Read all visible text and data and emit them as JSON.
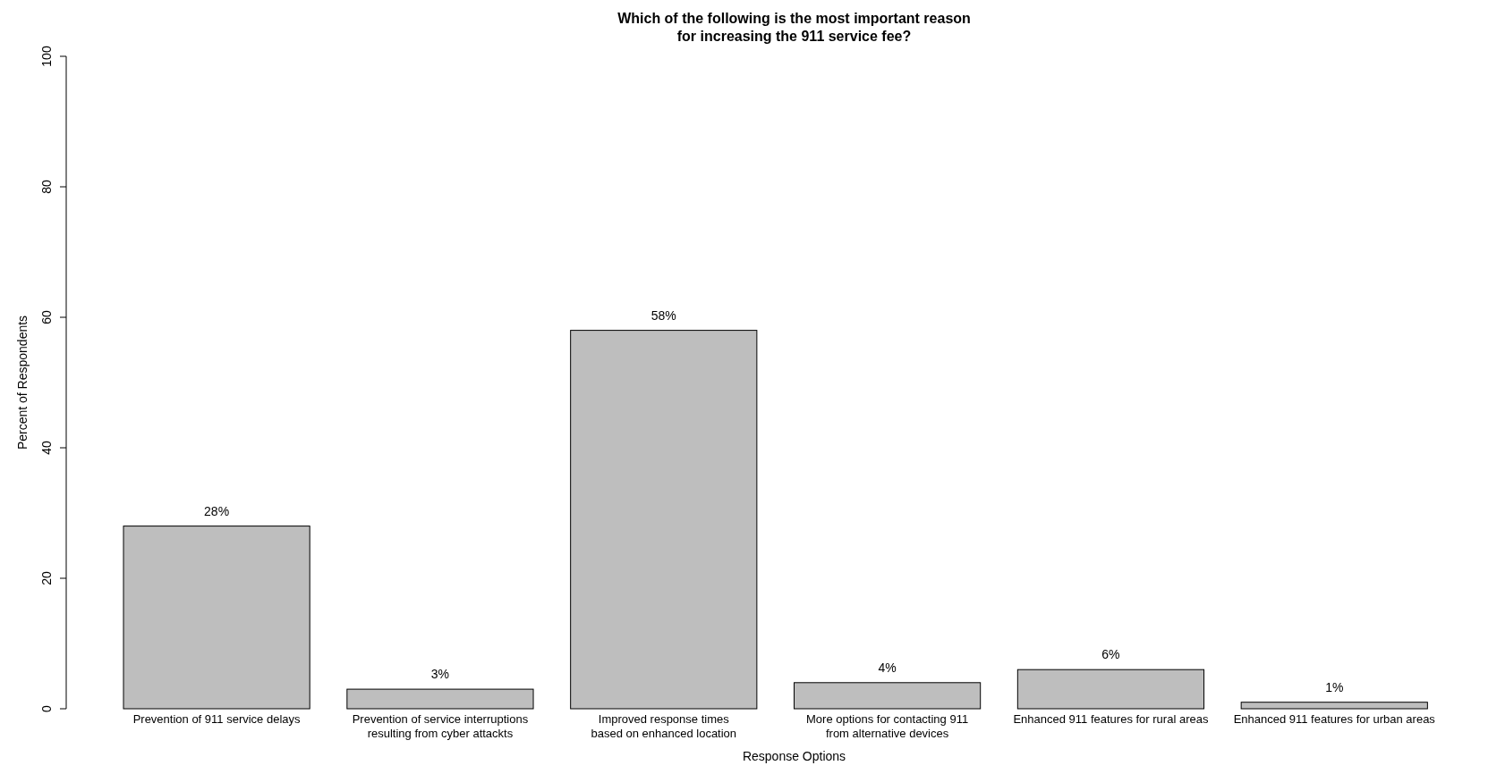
{
  "chart_data": {
    "type": "bar",
    "title": "Which of the following is the most important reason\nfor increasing the 911 service fee?",
    "xlabel": "Response Options",
    "ylabel": "Percent of Respondents",
    "categories": [
      "Prevention of 911 service delays",
      "Prevention of service interruptions\nresulting from cyber attackts",
      "Improved response times\nbased on enhanced location",
      "More options for contacting 911\nfrom alternative devices",
      "Enhanced 911 features for rural areas",
      "Enhanced 911 features for urban areas"
    ],
    "values": [
      28,
      3,
      58,
      4,
      6,
      1
    ],
    "value_labels": [
      "28%",
      "3%",
      "58%",
      "4%",
      "6%",
      "1%"
    ],
    "color": "#bebebe",
    "ylim": [
      0,
      100
    ],
    "yticks": [
      0,
      20,
      40,
      60,
      80,
      100
    ],
    "grid": false
  }
}
